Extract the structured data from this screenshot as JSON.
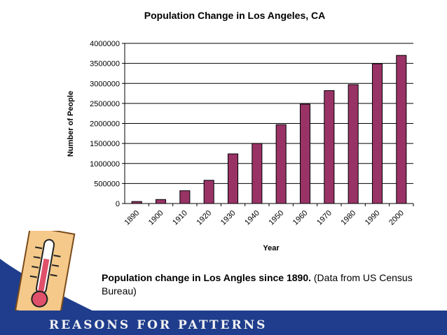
{
  "chart_data": {
    "type": "bar",
    "title": "Population Change in Los Angeles, CA",
    "xlabel": "Year",
    "ylabel": "Number of People",
    "categories": [
      "1890",
      "1900",
      "1910",
      "1920",
      "1930",
      "1940",
      "1950",
      "1960",
      "1970",
      "1980",
      "1990",
      "2000"
    ],
    "values": [
      50000,
      100000,
      320000,
      580000,
      1240000,
      1500000,
      1970000,
      2480000,
      2820000,
      2970000,
      3490000,
      3700000
    ],
    "ylim": [
      0,
      4000000
    ],
    "yticks": [
      0,
      500000,
      1000000,
      1500000,
      2000000,
      2500000,
      3000000,
      3500000,
      4000000
    ],
    "grid": true,
    "bar_color": "#993366"
  },
  "caption": {
    "bold_text": "Population change in Los Angles since 1890.",
    "normal_text": " (Data from US Census Bureau)"
  },
  "footer": {
    "text": "REASONS FOR PATTERNS",
    "band_color": "#1f3d8c"
  }
}
